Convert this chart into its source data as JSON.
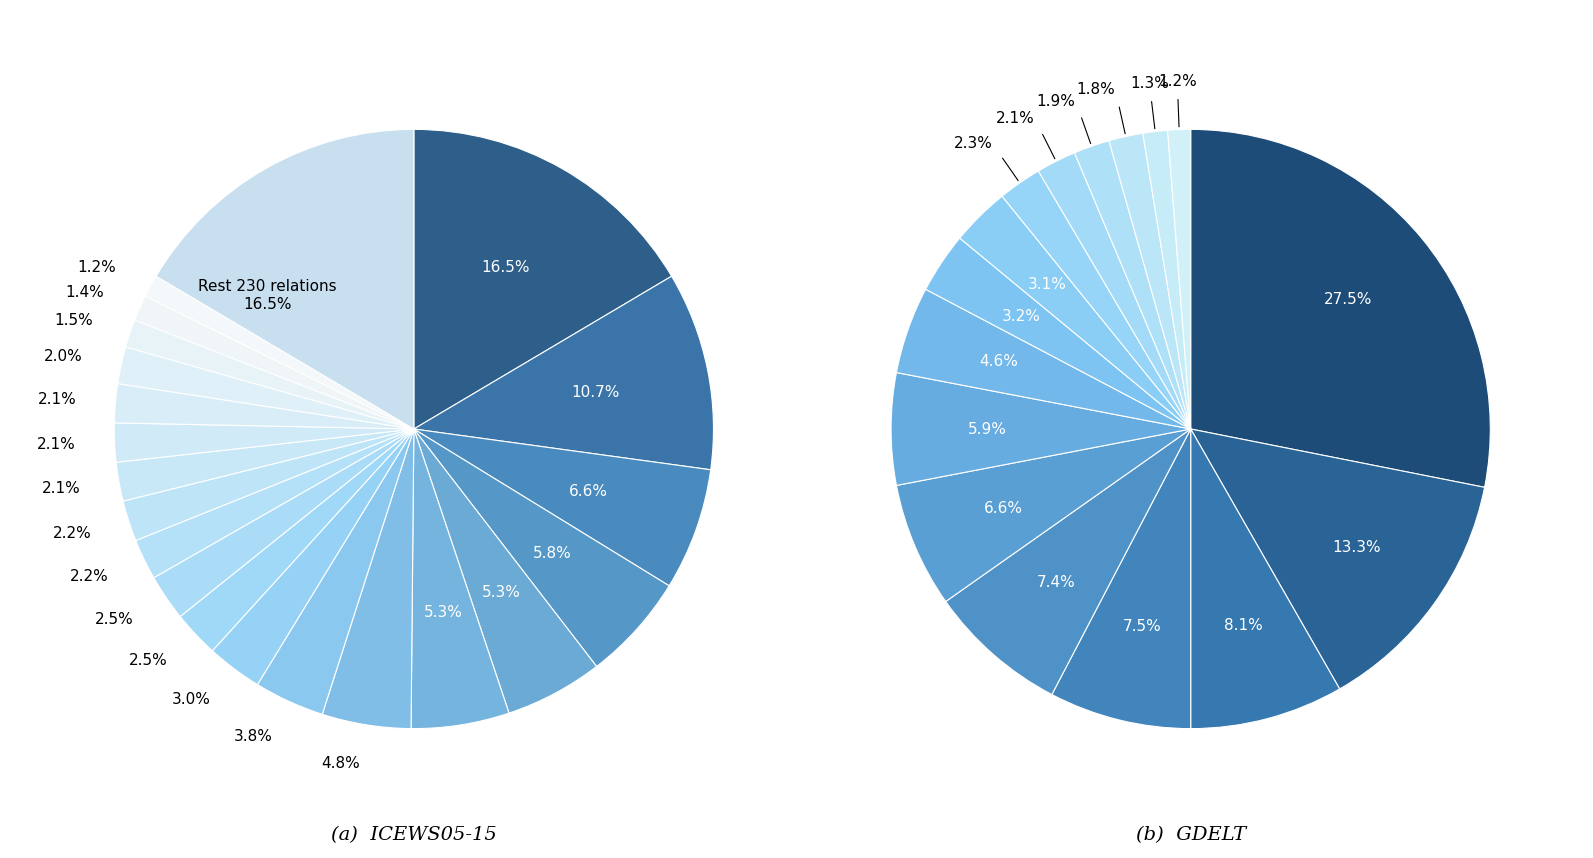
{
  "chart1": {
    "title": "(a)  ICEWS05-15",
    "values": [
      16.5,
      10.7,
      6.6,
      5.8,
      5.3,
      5.3,
      4.8,
      3.8,
      3.0,
      2.5,
      2.5,
      2.2,
      2.2,
      2.1,
      2.1,
      2.1,
      2.0,
      1.5,
      1.4,
      1.2,
      16.5
    ],
    "labels": [
      "16.5%",
      "10.7%",
      "6.6%",
      "5.8%",
      "5.3%",
      "5.3%",
      "4.8%",
      "3.8%",
      "3.0%",
      "2.5%",
      "2.5%",
      "2.2%",
      "2.2%",
      "2.1%",
      "2.1%",
      "2.1%",
      "2.0%",
      "1.5%",
      "1.4%",
      "1.2%",
      ""
    ],
    "legend_label": "Rest 230 relations\n16.5%",
    "colors": [
      "#2e5f8a",
      "#3a74a8",
      "#4a8bbf",
      "#5598c8",
      "#6aaad4",
      "#75b4de",
      "#80bee8",
      "#8bc8f0",
      "#96d2f6",
      "#a0d8f8",
      "#aadcf8",
      "#b4e0f8",
      "#bee4f8",
      "#c8e8f8",
      "#d0eaf8",
      "#d8edf8",
      "#e0f0f8",
      "#e8f3f8",
      "#f0f6f8",
      "#f5f8fa",
      "#c8dff0"
    ]
  },
  "chart2": {
    "title": "(b)  GDELT",
    "values": [
      27.5,
      13.3,
      8.1,
      7.5,
      7.4,
      6.6,
      5.9,
      4.6,
      3.2,
      3.1,
      2.3,
      2.1,
      1.9,
      1.8,
      1.3,
      1.2
    ],
    "labels": [
      "27.5%",
      "13.3%",
      "8.1%",
      "7.5%",
      "7.4%",
      "6.6%",
      "5.9%",
      "4.6%",
      "3.2%",
      "3.1%",
      "2.3%",
      "2.1%",
      "1.9%",
      "1.8%",
      "1.3%",
      "1.2%"
    ],
    "colors": [
      "#1e4c78",
      "#2a6496",
      "#3678b0",
      "#4285bc",
      "#4e92c8",
      "#5a9fd4",
      "#66ace0",
      "#72b8ea",
      "#7ec4f2",
      "#8acef6",
      "#96d4f8",
      "#a2daf8",
      "#aee0f8",
      "#bae6f8",
      "#c6ecf8",
      "#d2f0f8"
    ]
  },
  "background_color": "#ffffff",
  "label_fontsize": 11,
  "title_fontsize": 14
}
